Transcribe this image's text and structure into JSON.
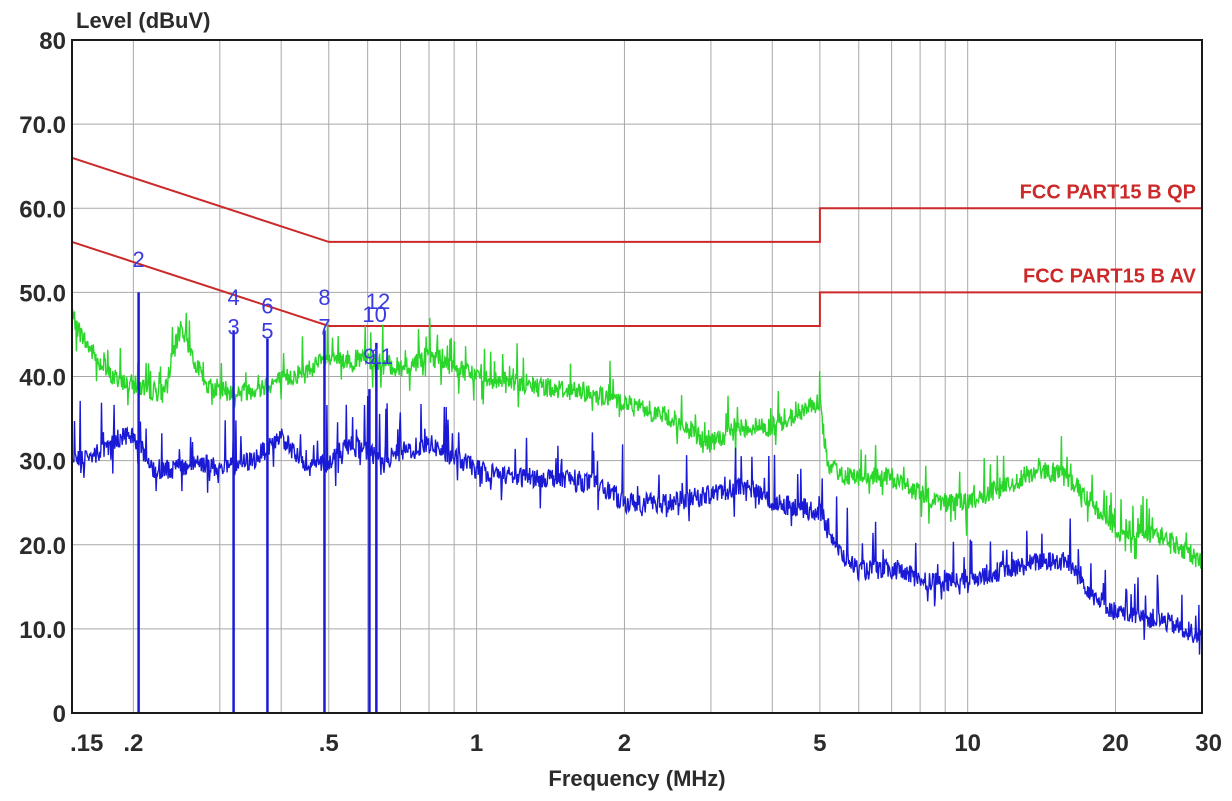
{
  "chart_data": {
    "type": "line",
    "ylabel": "Level (dBuV)",
    "xlabel": "Frequency (MHz)",
    "x_scale": "log",
    "xlim": [
      0.15,
      30
    ],
    "ylim": [
      0,
      80
    ],
    "grid": true,
    "x_tick_labels": [
      {
        "v": 0.15,
        "label": ".15"
      },
      {
        "v": 0.2,
        "label": ".2"
      },
      {
        "v": 0.5,
        "label": ".5"
      },
      {
        "v": 1,
        "label": "1"
      },
      {
        "v": 2,
        "label": "2"
      },
      {
        "v": 5,
        "label": "5"
      },
      {
        "v": 10,
        "label": "10"
      },
      {
        "v": 20,
        "label": "20"
      },
      {
        "v": 30,
        "label": "30"
      }
    ],
    "y_tick_labels": [
      {
        "v": 80,
        "label": "80"
      },
      {
        "v": 70,
        "label": "70.0"
      },
      {
        "v": 60,
        "label": "60.0"
      },
      {
        "v": 50,
        "label": "50.0"
      },
      {
        "v": 40,
        "label": "40.0"
      },
      {
        "v": 30,
        "label": "30.0"
      },
      {
        "v": 20,
        "label": "20.0"
      },
      {
        "v": 10,
        "label": "10.0"
      },
      {
        "v": 0,
        "label": "0"
      }
    ],
    "limit_lines": [
      {
        "name": "FCC PART15 B QP",
        "color": "#cc2a2a",
        "points": [
          [
            0.15,
            66
          ],
          [
            0.5,
            56
          ],
          [
            5,
            56
          ],
          [
            5,
            60
          ],
          [
            30,
            60
          ]
        ]
      },
      {
        "name": "FCC PART15 B AV",
        "color": "#cc2a2a",
        "points": [
          [
            0.15,
            56
          ],
          [
            0.5,
            46
          ],
          [
            5,
            46
          ],
          [
            5,
            50
          ],
          [
            30,
            50
          ]
        ]
      }
    ],
    "series": [
      {
        "color": "#2bd62b",
        "values": [
          [
            0.15,
            47
          ],
          [
            0.16,
            44
          ],
          [
            0.18,
            40
          ],
          [
            0.2,
            39
          ],
          [
            0.23,
            38
          ],
          [
            0.25,
            46
          ],
          [
            0.28,
            39
          ],
          [
            0.32,
            38
          ],
          [
            0.35,
            38.5
          ],
          [
            0.42,
            40
          ],
          [
            0.5,
            42
          ],
          [
            0.6,
            42
          ],
          [
            0.7,
            41
          ],
          [
            0.8,
            42.5
          ],
          [
            1,
            40
          ],
          [
            1.3,
            39
          ],
          [
            1.7,
            38
          ],
          [
            2,
            37
          ],
          [
            2.5,
            35
          ],
          [
            3,
            32
          ],
          [
            3.5,
            34
          ],
          [
            4,
            34
          ],
          [
            5,
            37
          ],
          [
            5.2,
            29
          ],
          [
            6,
            28
          ],
          [
            7,
            28
          ],
          [
            8,
            26
          ],
          [
            9,
            25
          ],
          [
            10,
            25
          ],
          [
            12,
            27
          ],
          [
            14,
            29
          ],
          [
            16,
            28
          ],
          [
            20,
            22
          ],
          [
            25,
            21
          ],
          [
            30,
            18
          ]
        ]
      },
      {
        "color": "#1a1ad6",
        "values": [
          [
            0.15,
            30
          ],
          [
            0.17,
            31
          ],
          [
            0.19,
            33
          ],
          [
            0.2,
            33
          ],
          [
            0.22,
            29
          ],
          [
            0.25,
            29
          ],
          [
            0.27,
            30
          ],
          [
            0.3,
            29
          ],
          [
            0.35,
            30
          ],
          [
            0.4,
            33
          ],
          [
            0.45,
            29
          ],
          [
            0.5,
            30
          ],
          [
            0.55,
            32
          ],
          [
            0.65,
            30
          ],
          [
            0.7,
            31
          ],
          [
            0.8,
            32
          ],
          [
            1,
            29
          ],
          [
            1.2,
            28
          ],
          [
            1.5,
            28
          ],
          [
            1.8,
            27
          ],
          [
            2,
            25
          ],
          [
            2.5,
            25
          ],
          [
            3,
            26
          ],
          [
            3.5,
            27
          ],
          [
            4,
            25
          ],
          [
            5,
            24
          ],
          [
            5.5,
            19
          ],
          [
            6,
            17
          ],
          [
            7,
            17
          ],
          [
            8,
            16
          ],
          [
            9,
            15.5
          ],
          [
            10,
            16
          ],
          [
            12,
            17
          ],
          [
            14,
            18
          ],
          [
            16,
            18
          ],
          [
            18,
            14
          ],
          [
            20,
            12
          ],
          [
            25,
            11
          ],
          [
            30,
            9
          ]
        ]
      }
    ],
    "markers": [
      {
        "label": "2",
        "x": 0.205,
        "y": 53
      },
      {
        "label": "4",
        "x": 0.32,
        "y": 48.5
      },
      {
        "label": "3",
        "x": 0.32,
        "y": 45
      },
      {
        "label": "6",
        "x": 0.375,
        "y": 47.5
      },
      {
        "label": "5",
        "x": 0.375,
        "y": 44.5
      },
      {
        "label": "8",
        "x": 0.49,
        "y": 48.5
      },
      {
        "label": "7",
        "x": 0.49,
        "y": 45
      },
      {
        "label": "12",
        "x": 0.63,
        "y": 48
      },
      {
        "label": "10",
        "x": 0.62,
        "y": 46.5
      },
      {
        "label": "9",
        "x": 0.605,
        "y": 41.5
      },
      {
        "label": "11",
        "x": 0.64,
        "y": 41.5
      }
    ],
    "peak_lines_x": [
      0.205,
      0.32,
      0.375,
      0.49,
      0.605,
      0.625
    ]
  }
}
